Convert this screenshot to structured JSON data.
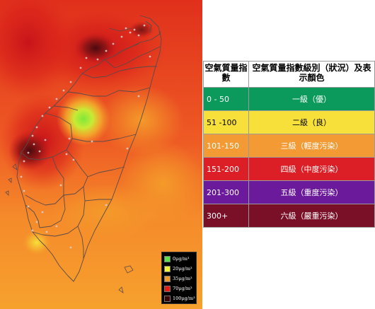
{
  "map": {
    "legend": [
      {
        "label": "0μg/m³",
        "color": "#5ee04a"
      },
      {
        "label": "20μg/m³",
        "color": "#f3f23a"
      },
      {
        "label": "35μg/m³",
        "color": "#ee9a2c"
      },
      {
        "label": "70μg/m³",
        "color": "#e51b14"
      },
      {
        "label": "100μg/m³",
        "color": "#3a0408"
      }
    ]
  },
  "table": {
    "header": {
      "col1": "空氣質量指數",
      "col2": "空氣質量指數級別（狀況）及表示顏色"
    },
    "rows": [
      {
        "range": "0 - 50",
        "level": "一級（優）",
        "color": "#0c9a5c",
        "text_color": "#ffffff"
      },
      {
        "range": "51 -100",
        "level": "二級（良）",
        "color": "#f7e03a",
        "text_color": "#000000"
      },
      {
        "range": "101-150",
        "level": "三級（輕度污染）",
        "color": "#f49a34",
        "text_color": "#ffffff"
      },
      {
        "range": "151-200",
        "level": "四級（中度污染）",
        "color": "#dc1f26",
        "text_color": "#ffffff"
      },
      {
        "range": "201-300",
        "level": "五級（重度污染）",
        "color": "#6a1a9a",
        "text_color": "#ffffff"
      },
      {
        "range": "300+",
        "level": "六級（嚴重污染）",
        "color": "#7a1028",
        "text_color": "#ffffff"
      }
    ]
  }
}
